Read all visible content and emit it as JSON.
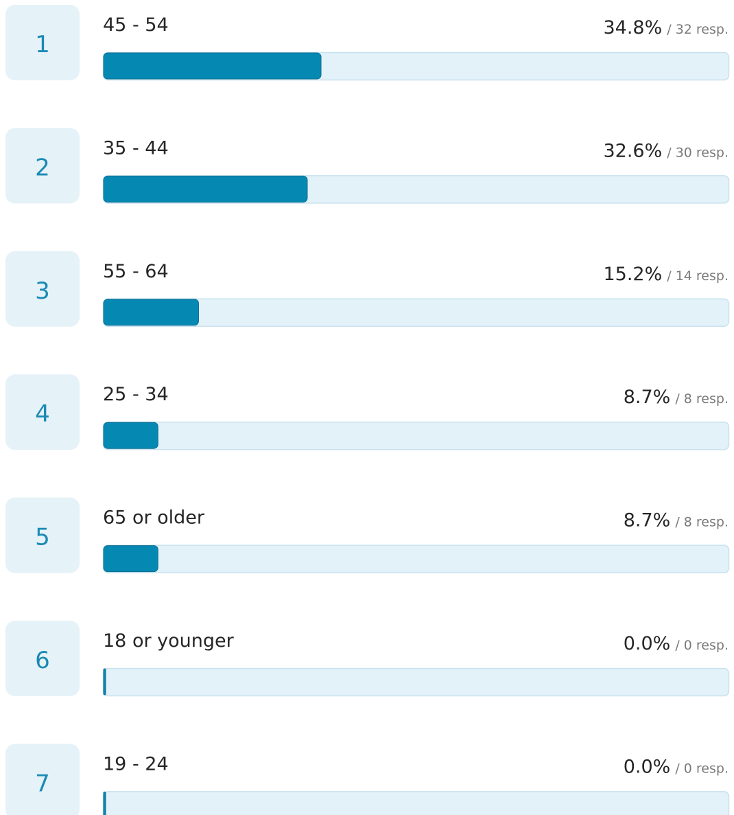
{
  "chart_data": {
    "type": "bar",
    "orientation": "horizontal",
    "ranks": [
      1,
      2,
      3,
      4,
      5,
      6,
      7
    ],
    "categories": [
      "45 - 54",
      "35 - 44",
      "55 - 64",
      "25 - 34",
      "65 or older",
      "18 or younger",
      "19 - 24"
    ],
    "values": [
      34.8,
      32.6,
      15.2,
      8.7,
      8.7,
      0.0,
      0.0
    ],
    "value_labels": [
      "34.8%",
      "32.6%",
      "15.2%",
      "8.7%",
      "8.7%",
      "0.0%",
      "0.0%"
    ],
    "response_labels": [
      "/ 32 resp.",
      "/ 30 resp.",
      "/ 14 resp.",
      "/ 8 resp.",
      "/ 8 resp.",
      "/ 0 resp.",
      "/ 0 resp."
    ],
    "xlim": [
      0,
      100
    ],
    "color": "#0589b3",
    "track_color": "#e3f1f8"
  }
}
